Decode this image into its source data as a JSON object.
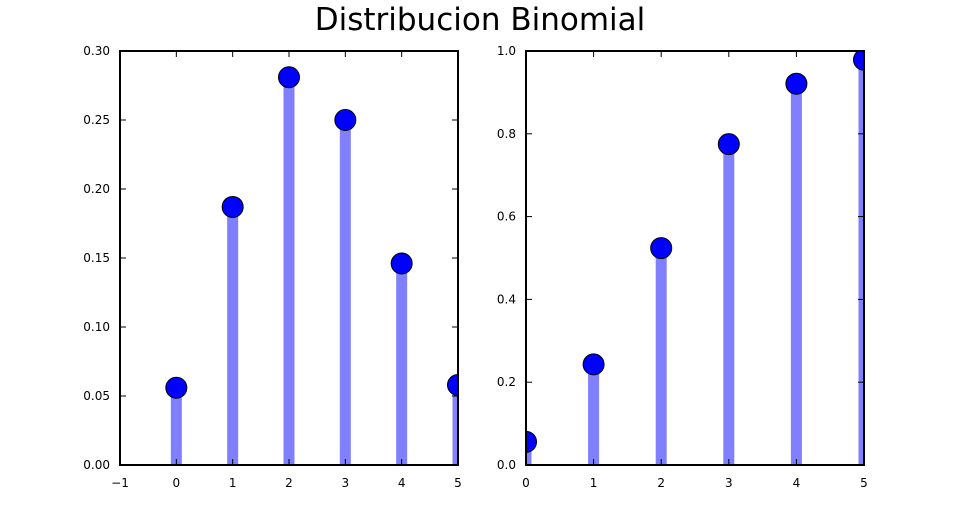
{
  "title": "Distribucion Binomial",
  "chart_data": [
    {
      "type": "stem",
      "title": "",
      "xlabel": "",
      "ylabel": "",
      "x": [
        0,
        1,
        2,
        3,
        4,
        5
      ],
      "values": [
        0.056,
        0.187,
        0.281,
        0.25,
        0.146,
        0.058
      ],
      "xlim": [
        -1,
        5
      ],
      "ylim": [
        0,
        0.3
      ],
      "xticks": [
        "−1",
        "0",
        "1",
        "2",
        "3",
        "4",
        "5"
      ],
      "yticks": [
        "0.00",
        "0.05",
        "0.10",
        "0.15",
        "0.20",
        "0.25",
        "0.30"
      ],
      "stem_color": "#8080ff",
      "marker_color": "#0000ff",
      "grid": false
    },
    {
      "type": "stem",
      "title": "",
      "xlabel": "",
      "ylabel": "",
      "x": [
        0,
        1,
        2,
        3,
        4,
        5
      ],
      "values": [
        0.056,
        0.243,
        0.524,
        0.775,
        0.921,
        0.979
      ],
      "xlim": [
        0,
        5
      ],
      "ylim": [
        0,
        1.0
      ],
      "xticks": [
        "0",
        "1",
        "2",
        "3",
        "4",
        "5"
      ],
      "yticks": [
        "0.0",
        "0.2",
        "0.4",
        "0.6",
        "0.8",
        "1.0"
      ],
      "stem_color": "#8080ff",
      "marker_color": "#0000ff",
      "grid": false
    }
  ]
}
